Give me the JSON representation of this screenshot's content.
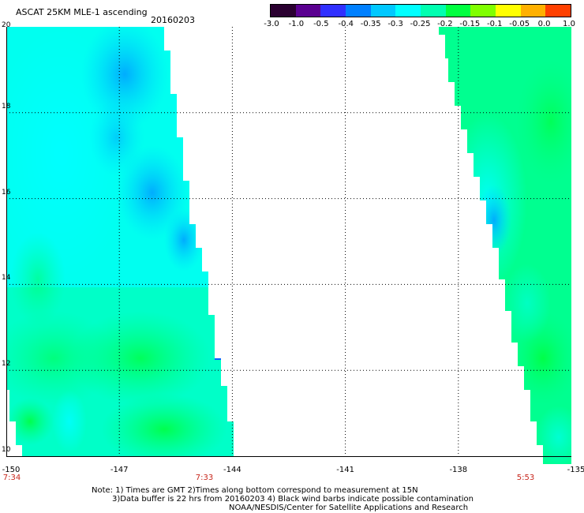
{
  "header": {
    "title": "ASCAT 25KM MLE-1 ascending",
    "date": "20160203"
  },
  "colorbar": {
    "tick_labels": [
      "-3.0",
      "-1.0",
      "-0.5",
      "-0.4",
      "-0.35",
      "-0.3",
      "-0.25",
      "-0.2",
      "-0.15",
      "-0.1",
      "-0.05",
      "0.0",
      "1.0"
    ],
    "colors": [
      "#2a0030",
      "#5a0090",
      "#3030ff",
      "#0080ff",
      "#00c8ff",
      "#00ffff",
      "#00ffb0",
      "#00ff40",
      "#80ff00",
      "#ffff00",
      "#ffb000",
      "#ff4000"
    ]
  },
  "map": {
    "lat_labels": [
      "20",
      "18",
      "16",
      "14",
      "12",
      "10"
    ],
    "lon_labels": [
      "-150",
      "-147",
      "-144",
      "-141",
      "-138",
      "-135"
    ],
    "time_labels": [
      "7:34",
      "7:33",
      "5:53"
    ],
    "swath_colors": {
      "cyan": "#00ffff",
      "light_blue": "#1ad4ff",
      "blue": "#0aa0ff",
      "aqua_green": "#00ffc0",
      "green": "#00ff80",
      "bright_green": "#00ff40"
    }
  },
  "footer": {
    "line1": "Note: 1) Times are GMT 2)Times along bottom correspond to measurement at 15N",
    "line2": "3)Data buffer is 22 hrs from 20160203 4) Black wind barbs indicate possible contamination",
    "line3": "NOAA/NESDIS/Center for Satellite Applications and Research"
  }
}
